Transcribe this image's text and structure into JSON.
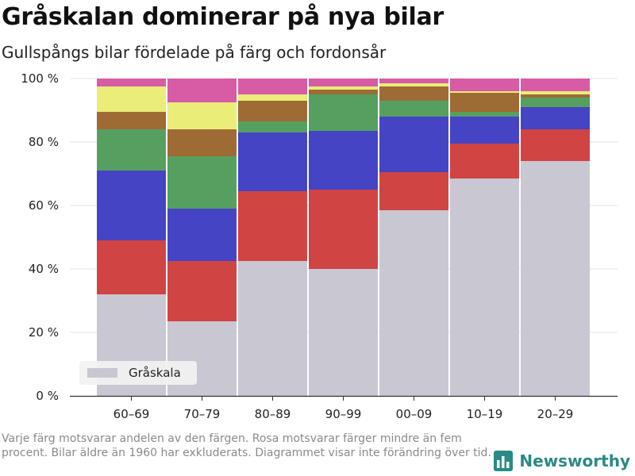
{
  "title": "Gråskalan dominerar på nya bilar",
  "subtitle": "Gullspångs bilar fördelade på färg och fordonsår",
  "footnote": "Varje färg motsvarar andelen av den färgen. Rosa motsvarar färger mindre än fem procent. Bilar äldre än 1960 har exkluderats. Diagrammet visar inte förändring över tid.",
  "brand": "Newsworthy",
  "chart_data": {
    "type": "bar",
    "stacked": true,
    "categories": [
      "60–69",
      "70–79",
      "80–89",
      "90–99",
      "00–09",
      "10–19",
      "20–29"
    ],
    "yticks": [
      "0 %",
      "20 %",
      "40 %",
      "60 %",
      "80 %",
      "100 %"
    ],
    "ylim": [
      0,
      100
    ],
    "grid": true,
    "legend_position": "bottom-left",
    "series": [
      {
        "name": "Gråskala",
        "color": "#c8c7d2",
        "values": [
          32,
          23.5,
          42.5,
          40,
          58.5,
          68.5,
          74
        ]
      },
      {
        "color": "#d04444",
        "values": [
          17,
          19,
          22,
          25,
          12,
          11,
          10
        ]
      },
      {
        "color": "#4444c4",
        "values": [
          22,
          16.5,
          18.5,
          18.5,
          17.5,
          8.5,
          7
        ]
      },
      {
        "color": "#55a060",
        "values": [
          13,
          16.5,
          3.5,
          11.5,
          5,
          1.5,
          3
        ]
      },
      {
        "color": "#9e6b35",
        "values": [
          5.5,
          8.5,
          6.5,
          1.5,
          4.5,
          6,
          1
        ]
      },
      {
        "color": "#eaed78",
        "values": [
          8,
          8.5,
          2,
          1,
          1,
          0.5,
          1
        ]
      },
      {
        "color": "#d75ca5",
        "values": [
          2.5,
          7.5,
          5,
          2.5,
          1.5,
          4,
          4
        ]
      }
    ]
  }
}
